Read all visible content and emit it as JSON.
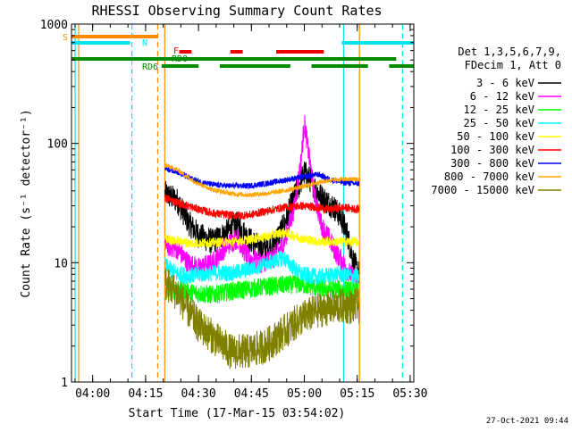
{
  "chart_data": {
    "type": "line",
    "title": "RHESSI Observing Summary Count Rates",
    "xlabel": "Start Time (17-Mar-15 03:54:02)",
    "ylabel": "Count Rate (s⁻¹ detector⁻¹)",
    "yscale": "log",
    "ylim": [
      1,
      1000
    ],
    "xlim_minutes": [
      -0.03,
      97.0
    ],
    "x_ticks": [
      {
        "minutes": 5.97,
        "label": "04:00"
      },
      {
        "minutes": 20.97,
        "label": "04:15"
      },
      {
        "minutes": 35.97,
        "label": "04:30"
      },
      {
        "minutes": 50.97,
        "label": "04:45"
      },
      {
        "minutes": 65.97,
        "label": "05:00"
      },
      {
        "minutes": 80.97,
        "label": "05:15"
      },
      {
        "minutes": 95.97,
        "label": "05:30"
      }
    ],
    "y_ticks": [
      {
        "value": 1,
        "label": "1"
      },
      {
        "value": 10,
        "label": "10"
      },
      {
        "value": 100,
        "label": "100"
      },
      {
        "value": 1000,
        "label": "1000"
      }
    ],
    "legend_header": [
      "Det 1,3,5,6,7,9,",
      "FDecim 1, Att 0"
    ],
    "legend_placement": "right",
    "footer_timestamp": "27-Oct-2021 09:44",
    "flags": [
      {
        "label": "S",
        "color": "#ff8c00",
        "segments": [
          [
            -0.03,
            24.6
          ]
        ]
      },
      {
        "label": "N",
        "color": "#00e5ee",
        "segments": [
          [
            -0.03,
            16.6
          ],
          [
            76.6,
            97.0
          ]
        ]
      },
      {
        "label": "F",
        "color": "#ee0000",
        "segments": [
          [
            30.5,
            34.0
          ],
          [
            45.0,
            48.5
          ],
          [
            58.0,
            71.5
          ]
        ]
      },
      {
        "label": "RDO",
        "color": "#008b00",
        "segments": [
          [
            -0.03,
            92.0
          ]
        ]
      },
      {
        "label": "RD6",
        "color": "#008b00",
        "segments": [
          [
            25.5,
            36.0
          ],
          [
            42.0,
            62.0
          ],
          [
            68.0,
            84.0
          ],
          [
            90.0,
            97.0
          ]
        ]
      }
    ],
    "vertical_lines": [
      {
        "minutes": 1.0,
        "color": "#00e5ee",
        "style": "solid"
      },
      {
        "minutes": 2.0,
        "color": "#ff8c00",
        "style": "solid"
      },
      {
        "minutes": 17.1,
        "color": "#00e5ee",
        "style": "dashed"
      },
      {
        "minutes": 24.4,
        "color": "#ff8c00",
        "style": "dashed"
      },
      {
        "minutes": 26.4,
        "color": "#ff8c00",
        "style": "solid"
      },
      {
        "minutes": 77.1,
        "color": "#00e5ee",
        "style": "solid"
      },
      {
        "minutes": 81.6,
        "color": "#ff8c00",
        "style": "solid"
      },
      {
        "minutes": 93.8,
        "color": "#00e5ee",
        "style": "dashed"
      }
    ],
    "series": [
      {
        "name": "3 - 6 keV",
        "color": "#000000",
        "noise": 0.22,
        "points": [
          [
            26.5,
            38
          ],
          [
            30,
            33
          ],
          [
            33,
            22
          ],
          [
            36,
            17
          ],
          [
            40,
            15
          ],
          [
            44,
            18
          ],
          [
            47,
            21
          ],
          [
            50,
            16
          ],
          [
            54,
            13
          ],
          [
            57,
            14
          ],
          [
            60,
            20
          ],
          [
            63,
            35
          ],
          [
            66,
            57
          ],
          [
            68,
            48
          ],
          [
            70,
            38
          ],
          [
            72,
            33
          ],
          [
            74,
            30
          ],
          [
            76,
            25
          ],
          [
            78,
            18
          ],
          [
            80,
            10
          ],
          [
            81.5,
            8
          ]
        ]
      },
      {
        "name": "6 - 12 keV",
        "color": "#ff00ff",
        "noise": 0.18,
        "points": [
          [
            26.5,
            14
          ],
          [
            30,
            13
          ],
          [
            33,
            10
          ],
          [
            36,
            9
          ],
          [
            40,
            10
          ],
          [
            44,
            14
          ],
          [
            47,
            16
          ],
          [
            50,
            11
          ],
          [
            54,
            10
          ],
          [
            57,
            11
          ],
          [
            60,
            14
          ],
          [
            63,
            28
          ],
          [
            65,
            70
          ],
          [
            66,
            150
          ],
          [
            67,
            90
          ],
          [
            69,
            35
          ],
          [
            71,
            20
          ],
          [
            73,
            16
          ],
          [
            75,
            12
          ],
          [
            77,
            10
          ],
          [
            79,
            8
          ],
          [
            81.5,
            7
          ]
        ]
      },
      {
        "name": "12 - 25 keV",
        "color": "#00ff00",
        "noise": 0.16,
        "points": [
          [
            26.5,
            5.5
          ],
          [
            30,
            6.2
          ],
          [
            34,
            5.6
          ],
          [
            40,
            5.4
          ],
          [
            46,
            5.8
          ],
          [
            50,
            6.0
          ],
          [
            55,
            6.3
          ],
          [
            60,
            6.5
          ],
          [
            65,
            6.6
          ],
          [
            70,
            6.1
          ],
          [
            75,
            6.0
          ],
          [
            81.5,
            5.8
          ]
        ]
      },
      {
        "name": "25 - 50 keV",
        "color": "#00ffff",
        "noise": 0.14,
        "points": [
          [
            26.5,
            9.5
          ],
          [
            30,
            8.0
          ],
          [
            34,
            7.8
          ],
          [
            40,
            8.2
          ],
          [
            46,
            8.2
          ],
          [
            50,
            8.8
          ],
          [
            55,
            9.8
          ],
          [
            60,
            11.0
          ],
          [
            65,
            8.0
          ],
          [
            70,
            7.6
          ],
          [
            75,
            8.0
          ],
          [
            81.5,
            7.6
          ]
        ]
      },
      {
        "name": "50 - 100 keV",
        "color": "#ffff00",
        "noise": 0.08,
        "points": [
          [
            26.5,
            16
          ],
          [
            30,
            15
          ],
          [
            34,
            14.5
          ],
          [
            40,
            14.8
          ],
          [
            46,
            15
          ],
          [
            50,
            15.5
          ],
          [
            55,
            16.5
          ],
          [
            60,
            18
          ],
          [
            65,
            16
          ],
          [
            70,
            15
          ],
          [
            75,
            15
          ],
          [
            81.5,
            15
          ]
        ]
      },
      {
        "name": "100 - 300 keV",
        "color": "#ff0000",
        "noise": 0.07,
        "points": [
          [
            26.5,
            35
          ],
          [
            30,
            32
          ],
          [
            33,
            30
          ],
          [
            36,
            28
          ],
          [
            40,
            26
          ],
          [
            45,
            25
          ],
          [
            50,
            25
          ],
          [
            55,
            27
          ],
          [
            60,
            29
          ],
          [
            65,
            30
          ],
          [
            70,
            29
          ],
          [
            73,
            28
          ],
          [
            77,
            29
          ],
          [
            81.5,
            28
          ]
        ]
      },
      {
        "name": "300 - 800 keV",
        "color": "#0000ff",
        "noise": 0.05,
        "points": [
          [
            26.5,
            62
          ],
          [
            30,
            58
          ],
          [
            33,
            52
          ],
          [
            36,
            48
          ],
          [
            40,
            45
          ],
          [
            45,
            44
          ],
          [
            50,
            44
          ],
          [
            55,
            46
          ],
          [
            60,
            49
          ],
          [
            65,
            52
          ],
          [
            70,
            55
          ],
          [
            73,
            50
          ],
          [
            77,
            47
          ],
          [
            81.5,
            46
          ]
        ]
      },
      {
        "name": "800 - 7000 keV",
        "color": "#ffa500",
        "noise": 0.04,
        "points": [
          [
            26.5,
            66
          ],
          [
            30,
            60
          ],
          [
            33,
            52
          ],
          [
            36,
            46
          ],
          [
            40,
            41
          ],
          [
            45,
            38
          ],
          [
            50,
            37
          ],
          [
            55,
            38
          ],
          [
            60,
            40
          ],
          [
            65,
            43
          ],
          [
            70,
            47
          ],
          [
            73,
            49
          ],
          [
            77,
            50
          ],
          [
            81.5,
            50
          ]
        ]
      },
      {
        "name": "7000 - 15000 keV",
        "color": "#808000",
        "noise": 0.3,
        "points": [
          [
            26.5,
            6.8
          ],
          [
            30,
            5.5
          ],
          [
            33,
            4.0
          ],
          [
            36,
            3.0
          ],
          [
            40,
            2.4
          ],
          [
            45,
            1.8
          ],
          [
            50,
            1.8
          ],
          [
            55,
            2.0
          ],
          [
            60,
            2.6
          ],
          [
            65,
            3.4
          ],
          [
            70,
            4.0
          ],
          [
            75,
            4.3
          ],
          [
            81.5,
            4.3
          ]
        ]
      }
    ]
  }
}
